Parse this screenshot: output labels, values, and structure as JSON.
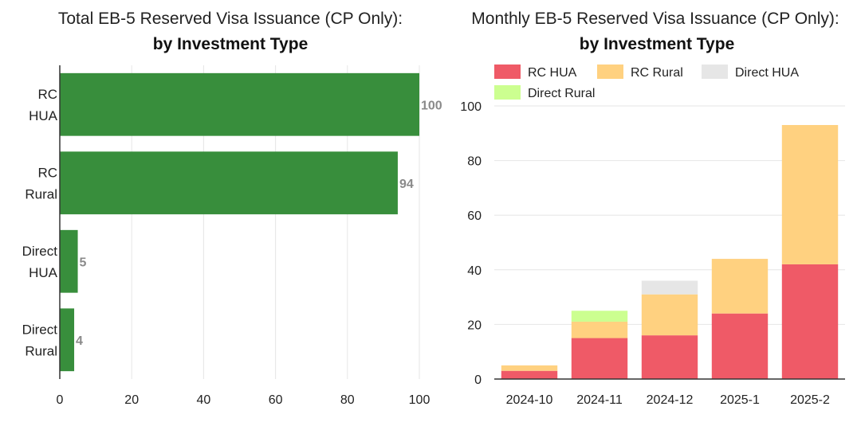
{
  "chart_data": [
    {
      "type": "bar",
      "orientation": "horizontal",
      "title": "Total EB-5 Reserved Visa Issuance (CP Only):",
      "subtitle": "by Investment Type",
      "categories": [
        [
          "RC",
          "HUA"
        ],
        [
          "RC",
          "Rural"
        ],
        [
          "Direct",
          "HUA"
        ],
        [
          "Direct",
          "Rural"
        ]
      ],
      "values": [
        100,
        94,
        5,
        4
      ],
      "xlim": [
        0,
        100
      ],
      "xticks": [
        0,
        20,
        40,
        60,
        80,
        100
      ],
      "grid": true,
      "color": "#388e3c"
    },
    {
      "type": "bar",
      "stacked": true,
      "title": "Monthly EB-5 Reserved Visa Issuance (CP Only):",
      "subtitle": "by Investment Type",
      "categories": [
        "2024-10",
        "2024-11",
        "2024-12",
        "2025-1",
        "2025-2"
      ],
      "series": [
        {
          "name": "RC HUA",
          "color": "#ef5a67",
          "values": [
            3,
            15,
            16,
            24,
            42
          ]
        },
        {
          "name": "RC Rural",
          "color": "#ffd180",
          "values": [
            2,
            6,
            15,
            20,
            51
          ]
        },
        {
          "name": "Direct HUA",
          "color": "#e6e6e6",
          "values": [
            0,
            0,
            5,
            0,
            0
          ]
        },
        {
          "name": "Direct Rural",
          "color": "#ccff90",
          "values": [
            0,
            4,
            0,
            0,
            0
          ]
        }
      ],
      "ylim": [
        0,
        100
      ],
      "yticks": [
        0,
        20,
        40,
        60,
        80,
        100
      ],
      "grid": true,
      "legend": "top"
    }
  ]
}
